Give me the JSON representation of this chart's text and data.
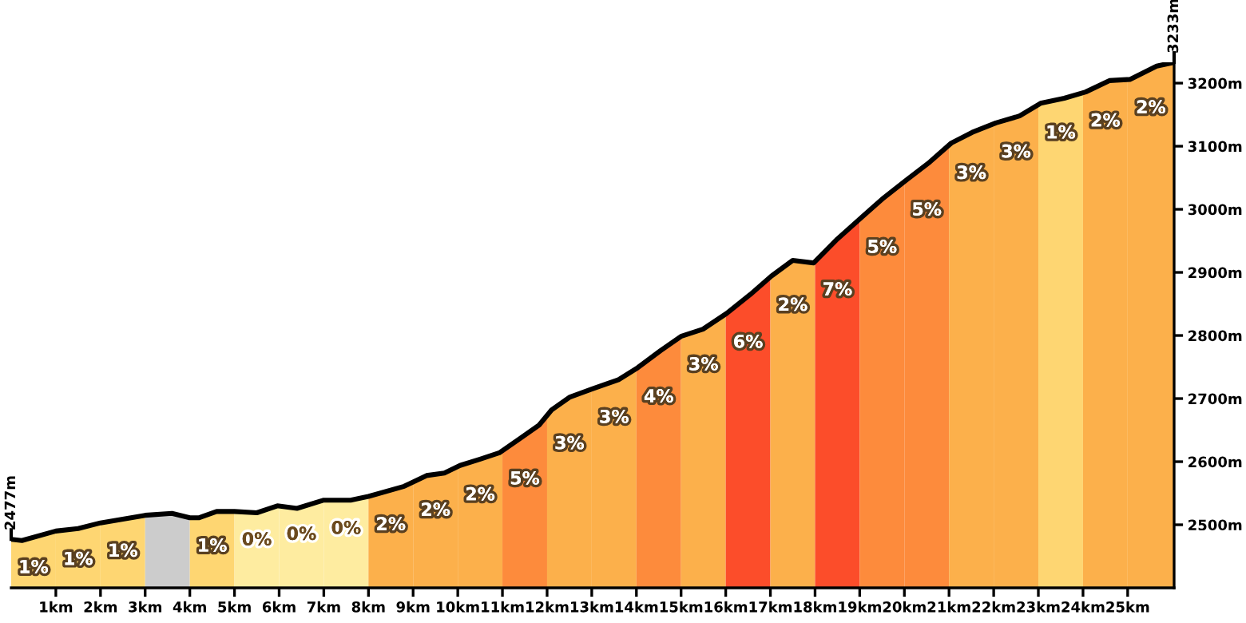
{
  "chart_data": {
    "type": "line",
    "x": [
      0,
      0.24,
      1,
      1.5,
      2,
      2.5,
      3,
      3.6,
      4,
      4.2,
      4.6,
      5,
      5.5,
      5.96,
      6.4,
      7,
      7.6,
      8,
      8.8,
      9.3,
      9.7,
      10.05,
      10.5,
      10.93,
      11.4,
      11.82,
      12.1,
      12.5,
      13,
      13.6,
      14.03,
      14.54,
      15.01,
      15.49,
      16.02,
      16.55,
      17.02,
      17.5,
      17.97,
      18.5,
      19.04,
      19.5,
      20.04,
      20.57,
      21.05,
      21.52,
      22.05,
      22.58,
      23.05,
      23.58,
      24.06,
      24.59,
      25.06,
      25.65,
      26.04
    ],
    "series": [
      {
        "color": "#000000",
        "values": [
          2477,
          2475,
          2490,
          2494,
          2503,
          2509,
          2515,
          2518,
          2511,
          2511,
          2521,
          2521,
          2519,
          2530,
          2526,
          2539,
          2539,
          2545,
          2561,
          2578,
          2582,
          2594,
          2604,
          2614,
          2637,
          2658,
          2682,
          2702,
          2715,
          2730,
          2749,
          2776,
          2799,
          2810,
          2835,
          2865,
          2894,
          2919,
          2915,
          2953,
          2987,
          3016,
          3046,
          3075,
          3105,
          3122,
          3137,
          3148,
          3168,
          3176,
          3186,
          3204,
          3206,
          3227,
          3233
        ]
      }
    ],
    "bands": [
      {
        "axis": "x",
        "from": 0,
        "to": 1,
        "color": "#fed672",
        "label": "1%"
      },
      {
        "axis": "x",
        "from": 1,
        "to": 2,
        "color": "#fed672",
        "label": "1%"
      },
      {
        "axis": "x",
        "from": 2,
        "to": 3,
        "color": "#fed672",
        "label": "1%"
      },
      {
        "axis": "x",
        "from": 3,
        "to": 4,
        "color": "#cccccc"
      },
      {
        "axis": "x",
        "from": 4,
        "to": 5,
        "color": "#fed672",
        "label": "1%"
      },
      {
        "axis": "x",
        "from": 5,
        "to": 6,
        "color": "#feeca0",
        "label": "0%"
      },
      {
        "axis": "x",
        "from": 6,
        "to": 7,
        "color": "#feeca0",
        "label": "0%"
      },
      {
        "axis": "x",
        "from": 7,
        "to": 8,
        "color": "#feeca0",
        "label": "0%"
      },
      {
        "axis": "x",
        "from": 8,
        "to": 9,
        "color": "#fcb04b",
        "label": "2%"
      },
      {
        "axis": "x",
        "from": 9,
        "to": 10,
        "color": "#fcb04b",
        "label": "2%"
      },
      {
        "axis": "x",
        "from": 10,
        "to": 11,
        "color": "#fcb04b",
        "label": "2%"
      },
      {
        "axis": "x",
        "from": 11,
        "to": 12,
        "color": "#fd8b3c",
        "label": "5%"
      },
      {
        "axis": "x",
        "from": 12,
        "to": 13,
        "color": "#fcb04b",
        "label": "3%"
      },
      {
        "axis": "x",
        "from": 13,
        "to": 14,
        "color": "#fcb04b",
        "label": "3%"
      },
      {
        "axis": "x",
        "from": 14,
        "to": 15,
        "color": "#fd8b3c",
        "label": "4%"
      },
      {
        "axis": "x",
        "from": 15,
        "to": 16,
        "color": "#fcb04b",
        "label": "3%"
      },
      {
        "axis": "x",
        "from": 16,
        "to": 17,
        "color": "#fc4d2a",
        "label": "6%"
      },
      {
        "axis": "x",
        "from": 17,
        "to": 18,
        "color": "#fcb04b",
        "label": "2%"
      },
      {
        "axis": "x",
        "from": 18,
        "to": 19,
        "color": "#fc4d2a",
        "label": "7%"
      },
      {
        "axis": "x",
        "from": 19,
        "to": 20,
        "color": "#fd8b3c",
        "label": "5%"
      },
      {
        "axis": "x",
        "from": 20,
        "to": 21,
        "color": "#fd8b3c",
        "label": "5%"
      },
      {
        "axis": "x",
        "from": 21,
        "to": 22,
        "color": "#fcb04b",
        "label": "3%"
      },
      {
        "axis": "x",
        "from": 22,
        "to": 23,
        "color": "#fcb04b",
        "label": "3%"
      },
      {
        "axis": "x",
        "from": 23,
        "to": 24,
        "color": "#fed672",
        "label": "1%"
      },
      {
        "axis": "x",
        "from": 24,
        "to": 25,
        "color": "#fcb04b",
        "label": "2%"
      },
      {
        "axis": "x",
        "from": 25,
        "to": 26.04,
        "color": "#fcb04b",
        "label": "2%"
      }
    ],
    "annotations": [
      {
        "text": "2477m",
        "x": 0,
        "y": 2477
      },
      {
        "text": "3233m",
        "x": 26.04,
        "y": 3233
      }
    ],
    "xlim": [
      0,
      26.04
    ],
    "xticks": [
      {
        "value": 1,
        "label": "1km"
      },
      {
        "value": 2,
        "label": "2km"
      },
      {
        "value": 3,
        "label": "3km"
      },
      {
        "value": 4,
        "label": "4km"
      },
      {
        "value": 5,
        "label": "5km"
      },
      {
        "value": 6,
        "label": "6km"
      },
      {
        "value": 7,
        "label": "7km"
      },
      {
        "value": 8,
        "label": "8km"
      },
      {
        "value": 9,
        "label": "9km"
      },
      {
        "value": 10,
        "label": "10km"
      },
      {
        "value": 11,
        "label": "11km"
      },
      {
        "value": 12,
        "label": "12km"
      },
      {
        "value": 13,
        "label": "13km"
      },
      {
        "value": 14,
        "label": "14km"
      },
      {
        "value": 15,
        "label": "15km"
      },
      {
        "value": 16,
        "label": "16km"
      },
      {
        "value": 17,
        "label": "17km"
      },
      {
        "value": 18,
        "label": "18km"
      },
      {
        "value": 19,
        "label": "19km"
      },
      {
        "value": 20,
        "label": "20km"
      },
      {
        "value": 21,
        "label": "21km"
      },
      {
        "value": 22,
        "label": "22km"
      },
      {
        "value": 23,
        "label": "23km"
      },
      {
        "value": 24,
        "label": "24km"
      },
      {
        "value": 25,
        "label": "25km"
      }
    ],
    "ylim": [
      2400,
      3233
    ],
    "yticks": [
      {
        "value": 2500,
        "label": "2500m"
      },
      {
        "value": 2600,
        "label": "2600m"
      },
      {
        "value": 2700,
        "label": "2700m"
      },
      {
        "value": 2800,
        "label": "2800m"
      },
      {
        "value": 2900,
        "label": "2900m"
      },
      {
        "value": 3000,
        "label": "3000m"
      },
      {
        "value": 3100,
        "label": "3100m"
      },
      {
        "value": 3200,
        "label": "3200m"
      }
    ],
    "grid": false,
    "legend": false
  }
}
